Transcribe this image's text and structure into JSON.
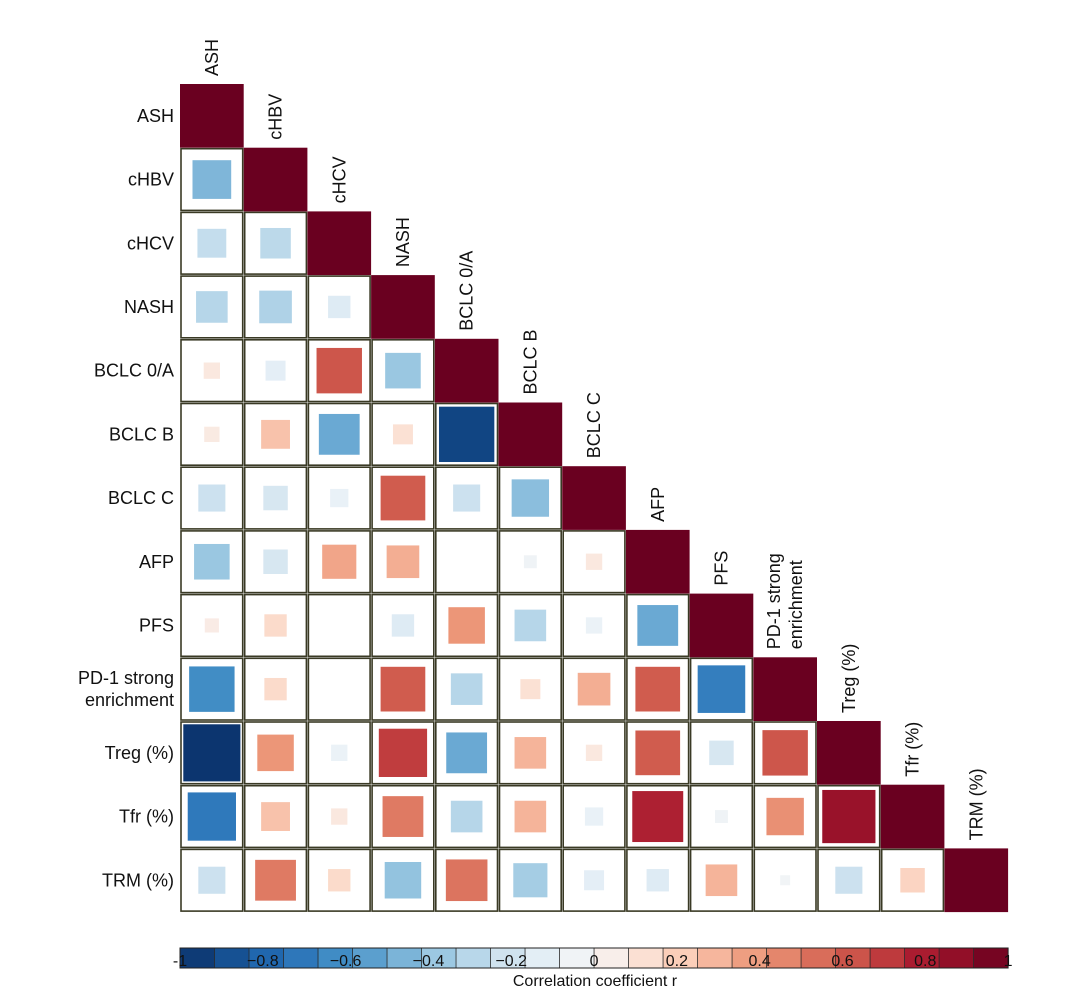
{
  "chart_data": {
    "type": "heatmap",
    "subtype": "lower-triangular correlation matrix (square size and color scale with r)",
    "variables": [
      "ASH",
      "cHBV",
      "cHCV",
      "NASH",
      "BCLC 0/A",
      "BCLC B",
      "BCLC C",
      "AFP",
      "PFS",
      "PD-1 strong enrichment",
      "Treg (%)",
      "Tfr (%)",
      "TRM (%)"
    ],
    "row_labels": [
      [
        "ASH"
      ],
      [
        "cHBV"
      ],
      [
        "cHCV"
      ],
      [
        "NASH"
      ],
      [
        "BCLC 0/A"
      ],
      [
        "BCLC B"
      ],
      [
        "BCLC C"
      ],
      [
        "AFP"
      ],
      [
        "PFS"
      ],
      [
        "PD-1 strong",
        "enrichment"
      ],
      [
        "Treg (%)"
      ],
      [
        "Tfr (%)"
      ],
      [
        "TRM (%)"
      ]
    ],
    "col_labels": [
      [
        "ASH"
      ],
      [
        "cHBV"
      ],
      [
        "cHCV"
      ],
      [
        "NASH"
      ],
      [
        "BCLC 0/A"
      ],
      [
        "BCLC B"
      ],
      [
        "BCLC C"
      ],
      [
        "AFP"
      ],
      [
        "PFS"
      ],
      [
        "PD-1 strong",
        "enrichment"
      ],
      [
        "Treg (%)"
      ],
      [
        "Tfr (%)"
      ],
      [
        "TRM (%)"
      ]
    ],
    "matrix": [
      [
        1
      ],
      [
        -0.45,
        1
      ],
      [
        -0.25,
        -0.28,
        1
      ],
      [
        -0.3,
        -0.32,
        -0.15,
        1
      ],
      [
        0.08,
        -0.12,
        0.62,
        -0.38,
        1
      ],
      [
        0.07,
        0.25,
        -0.5,
        0.12,
        -0.92,
        1
      ],
      [
        -0.22,
        -0.18,
        -0.1,
        0.6,
        -0.22,
        -0.42,
        1
      ],
      [
        -0.38,
        -0.18,
        0.35,
        0.32,
        0.0,
        -0.05,
        0.08,
        1
      ],
      [
        0.06,
        0.15,
        0.0,
        -0.15,
        0.4,
        -0.3,
        -0.08,
        -0.5,
        1
      ],
      [
        -0.62,
        0.15,
        0.0,
        0.6,
        -0.3,
        0.12,
        0.32,
        0.6,
        -0.68,
        1
      ],
      [
        -0.98,
        0.4,
        -0.08,
        0.7,
        -0.5,
        0.3,
        0.08,
        0.6,
        -0.18,
        0.62,
        1
      ],
      [
        -0.7,
        0.25,
        0.08,
        0.5,
        -0.3,
        0.3,
        -0.1,
        0.78,
        -0.05,
        0.42,
        0.85,
        1
      ],
      [
        -0.22,
        0.5,
        0.15,
        -0.4,
        0.52,
        -0.35,
        -0.12,
        -0.15,
        0.3,
        -0.03,
        -0.22,
        0.18,
        1
      ]
    ],
    "colorbar": {
      "label": "Correlation coefficient r",
      "ticks": [
        -1,
        -0.8,
        -0.6,
        -0.4,
        -0.2,
        0,
        0.2,
        0.4,
        0.6,
        0.8,
        1
      ],
      "tick_labels": [
        "-1",
        "−0.8",
        "−0.6",
        "−0.4",
        "−0.2",
        "0",
        "0.2",
        "0.4",
        "0.6",
        "0.8",
        "1"
      ],
      "range": [
        -1,
        1
      ],
      "n_bins": 24,
      "colors": [
        "#0a3068",
        "#134a8a",
        "#1f65ad",
        "#2f79bb",
        "#4692c8",
        "#6aa9d3",
        "#93c3df",
        "#b6d6e9",
        "#d2e4f0",
        "#e9f1f7",
        "#f5f5f5",
        "#fbe5da",
        "#fbd0bc",
        "#f5b49a",
        "#ec9678",
        "#df7a63",
        "#d05c4e",
        "#c03d3e",
        "#a8192f",
        "#8a0b25",
        "#67001f"
      ]
    },
    "styling": {
      "cell_border": "#3a3a25",
      "max_cell": "#6a0020"
    }
  }
}
